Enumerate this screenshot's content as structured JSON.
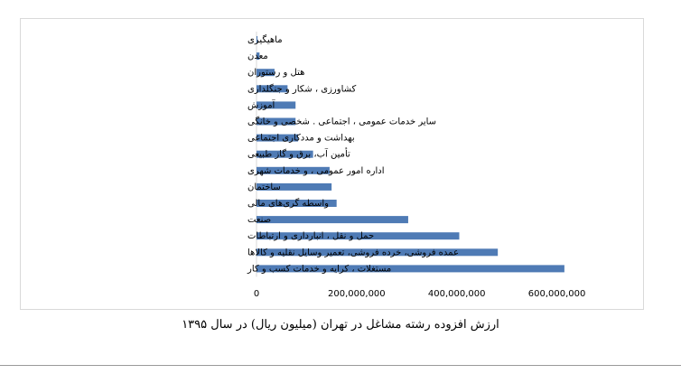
{
  "chart_data": {
    "type": "bar",
    "orientation": "horizontal",
    "title": "",
    "xlabel": "",
    "ylabel": "",
    "categories": [
      "ماهیگیری",
      "معدن",
      "هتل و رستوران",
      "کشاورزی ، شکار و جنگلداری",
      "آموزش",
      "سایر خدمات عمومی ، اجتماعی . شخصی و خانگی",
      "بهداشت و مددکاری اجتماعی",
      "تأمین آب، برق و گاز طبیعی",
      "اداره امور عمومی ، و خدمات شهری",
      "ساختمان",
      "واسطه گری‌های مالی",
      "صنعت",
      "حمل و نقل ، انبارداری و ارتباطات",
      "عمده فروشی، خرده فروشی، تعمیر وسایل نقلیه و کالاها",
      "مستغلات ، کرایه و خدمات کسب و کار"
    ],
    "values": [
      2000000,
      6000000,
      36000000,
      62000000,
      78000000,
      78000000,
      83000000,
      113000000,
      146000000,
      150000000,
      160000000,
      303000000,
      405000000,
      482000000,
      615000000
    ],
    "xlim": [
      0,
      700000000
    ],
    "xticks": [
      0,
      200000000,
      400000000,
      600000000
    ],
    "xtick_labels": [
      "0",
      "200,000,000",
      "400,000,000",
      "600,000,000"
    ],
    "grid": false,
    "legend": "none",
    "bar_color": "#4f7bb5"
  },
  "caption": "ارزش افزوده رشته مشاغل در تهران (میلیون ریال) در سال ۱۳۹۵"
}
